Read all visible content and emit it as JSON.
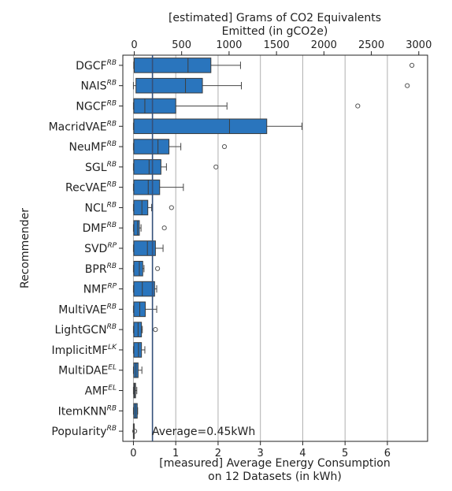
{
  "chart_data": {
    "type": "boxplot-horizontal",
    "top_axis": {
      "label_line1": "[estimated] Grams of CO2 Equivalents",
      "label_line2": "Emitted (in gCO2e)",
      "ticks": [
        0,
        500,
        1000,
        1500,
        2000,
        2500,
        3000
      ],
      "tick_labels": [
        "0",
        "500",
        "1000",
        "1500",
        "2000",
        "2500",
        "3000"
      ],
      "range": [
        -120,
        3093
      ]
    },
    "bottom_axis": {
      "label_line1": "[measured] Average Energy Consumption",
      "label_line2": "on 12 Datasets (in kWh)",
      "ticks": [
        0,
        1,
        2,
        3,
        4,
        5,
        6
      ],
      "tick_labels": [
        "0",
        "1",
        "2",
        "3",
        "4",
        "5",
        "6"
      ],
      "range": [
        -0.25,
        6.95
      ]
    },
    "ylabel": "Recommender",
    "grid": "vertical",
    "box_color": "#2a75bd",
    "average": {
      "value": 0.45,
      "label": "Average=0.45kWh"
    },
    "categories": [
      {
        "name": "DGCF",
        "sup": "RB"
      },
      {
        "name": "NAIS",
        "sup": "RB"
      },
      {
        "name": "NGCF",
        "sup": "RB"
      },
      {
        "name": "MacridVAE",
        "sup": "RB"
      },
      {
        "name": "NeuMF",
        "sup": "RB"
      },
      {
        "name": "SGL",
        "sup": "RB"
      },
      {
        "name": "RecVAE",
        "sup": "RB"
      },
      {
        "name": "NCL",
        "sup": "RB"
      },
      {
        "name": "DMF",
        "sup": "RB"
      },
      {
        "name": "SVD",
        "sup": "RP"
      },
      {
        "name": "BPR",
        "sup": "RB"
      },
      {
        "name": "NMF",
        "sup": "RP"
      },
      {
        "name": "MultiVAE",
        "sup": "RB"
      },
      {
        "name": "LightGCN",
        "sup": "RB"
      },
      {
        "name": "ImplicitMF",
        "sup": "LK"
      },
      {
        "name": "MultiDAE",
        "sup": "EL"
      },
      {
        "name": "AMF",
        "sup": "EL"
      },
      {
        "name": "ItemKNN",
        "sup": "RB"
      },
      {
        "name": "Popularity",
        "sup": "RB"
      }
    ],
    "boxes": [
      {
        "wl": 0.01,
        "q1": 0.02,
        "med": 1.29,
        "q3": 1.83,
        "wh": 2.53,
        "out": [
          6.58
        ]
      },
      {
        "wl": 0.0,
        "q1": 0.06,
        "med": 1.23,
        "q3": 1.63,
        "wh": 2.55,
        "out": [
          6.47
        ]
      },
      {
        "wl": 0.0,
        "q1": 0.01,
        "med": 0.27,
        "q3": 1.0,
        "wh": 2.21,
        "out": [
          5.3
        ]
      },
      {
        "wl": 0.0,
        "q1": 0.01,
        "med": 2.27,
        "q3": 3.15,
        "wh": 3.98,
        "out": []
      },
      {
        "wl": 0.0,
        "q1": 0.01,
        "med": 0.58,
        "q3": 0.84,
        "wh": 1.12,
        "out": [
          2.15
        ]
      },
      {
        "wl": 0.0,
        "q1": 0.01,
        "med": 0.37,
        "q3": 0.65,
        "wh": 0.78,
        "out": [
          1.95
        ]
      },
      {
        "wl": 0.0,
        "q1": 0.01,
        "med": 0.35,
        "q3": 0.62,
        "wh": 1.18,
        "out": []
      },
      {
        "wl": 0.0,
        "q1": 0.01,
        "med": 0.2,
        "q3": 0.34,
        "wh": 0.43,
        "out": [
          0.9
        ]
      },
      {
        "wl": 0.0,
        "q1": 0.01,
        "med": 0.1,
        "q3": 0.14,
        "wh": 0.18,
        "out": [
          0.73
        ]
      },
      {
        "wl": 0.0,
        "q1": 0.01,
        "med": 0.33,
        "q3": 0.52,
        "wh": 0.7,
        "out": []
      },
      {
        "wl": 0.0,
        "q1": 0.01,
        "med": 0.14,
        "q3": 0.22,
        "wh": 0.25,
        "out": [
          0.57
        ]
      },
      {
        "wl": 0.0,
        "q1": 0.01,
        "med": 0.21,
        "q3": 0.5,
        "wh": 0.55,
        "out": []
      },
      {
        "wl": 0.0,
        "q1": 0.01,
        "med": 0.15,
        "q3": 0.28,
        "wh": 0.55,
        "out": []
      },
      {
        "wl": 0.0,
        "q1": 0.01,
        "med": 0.11,
        "q3": 0.19,
        "wh": 0.21,
        "out": [
          0.52
        ]
      },
      {
        "wl": 0.0,
        "q1": 0.01,
        "med": 0.12,
        "q3": 0.19,
        "wh": 0.27,
        "out": []
      },
      {
        "wl": 0.0,
        "q1": 0.01,
        "med": 0.06,
        "q3": 0.11,
        "wh": 0.2,
        "out": []
      },
      {
        "wl": 0.0,
        "q1": 0.01,
        "med": 0.03,
        "q3": 0.05,
        "wh": 0.08,
        "out": []
      },
      {
        "wl": 0.0,
        "q1": 0.01,
        "med": 0.05,
        "q3": 0.09,
        "wh": 0.1,
        "out": []
      },
      {
        "wl": 0.0,
        "q1": 0.0,
        "med": 0.0,
        "q3": 0.01,
        "wh": 0.01,
        "out": [
          0.03
        ]
      }
    ]
  }
}
